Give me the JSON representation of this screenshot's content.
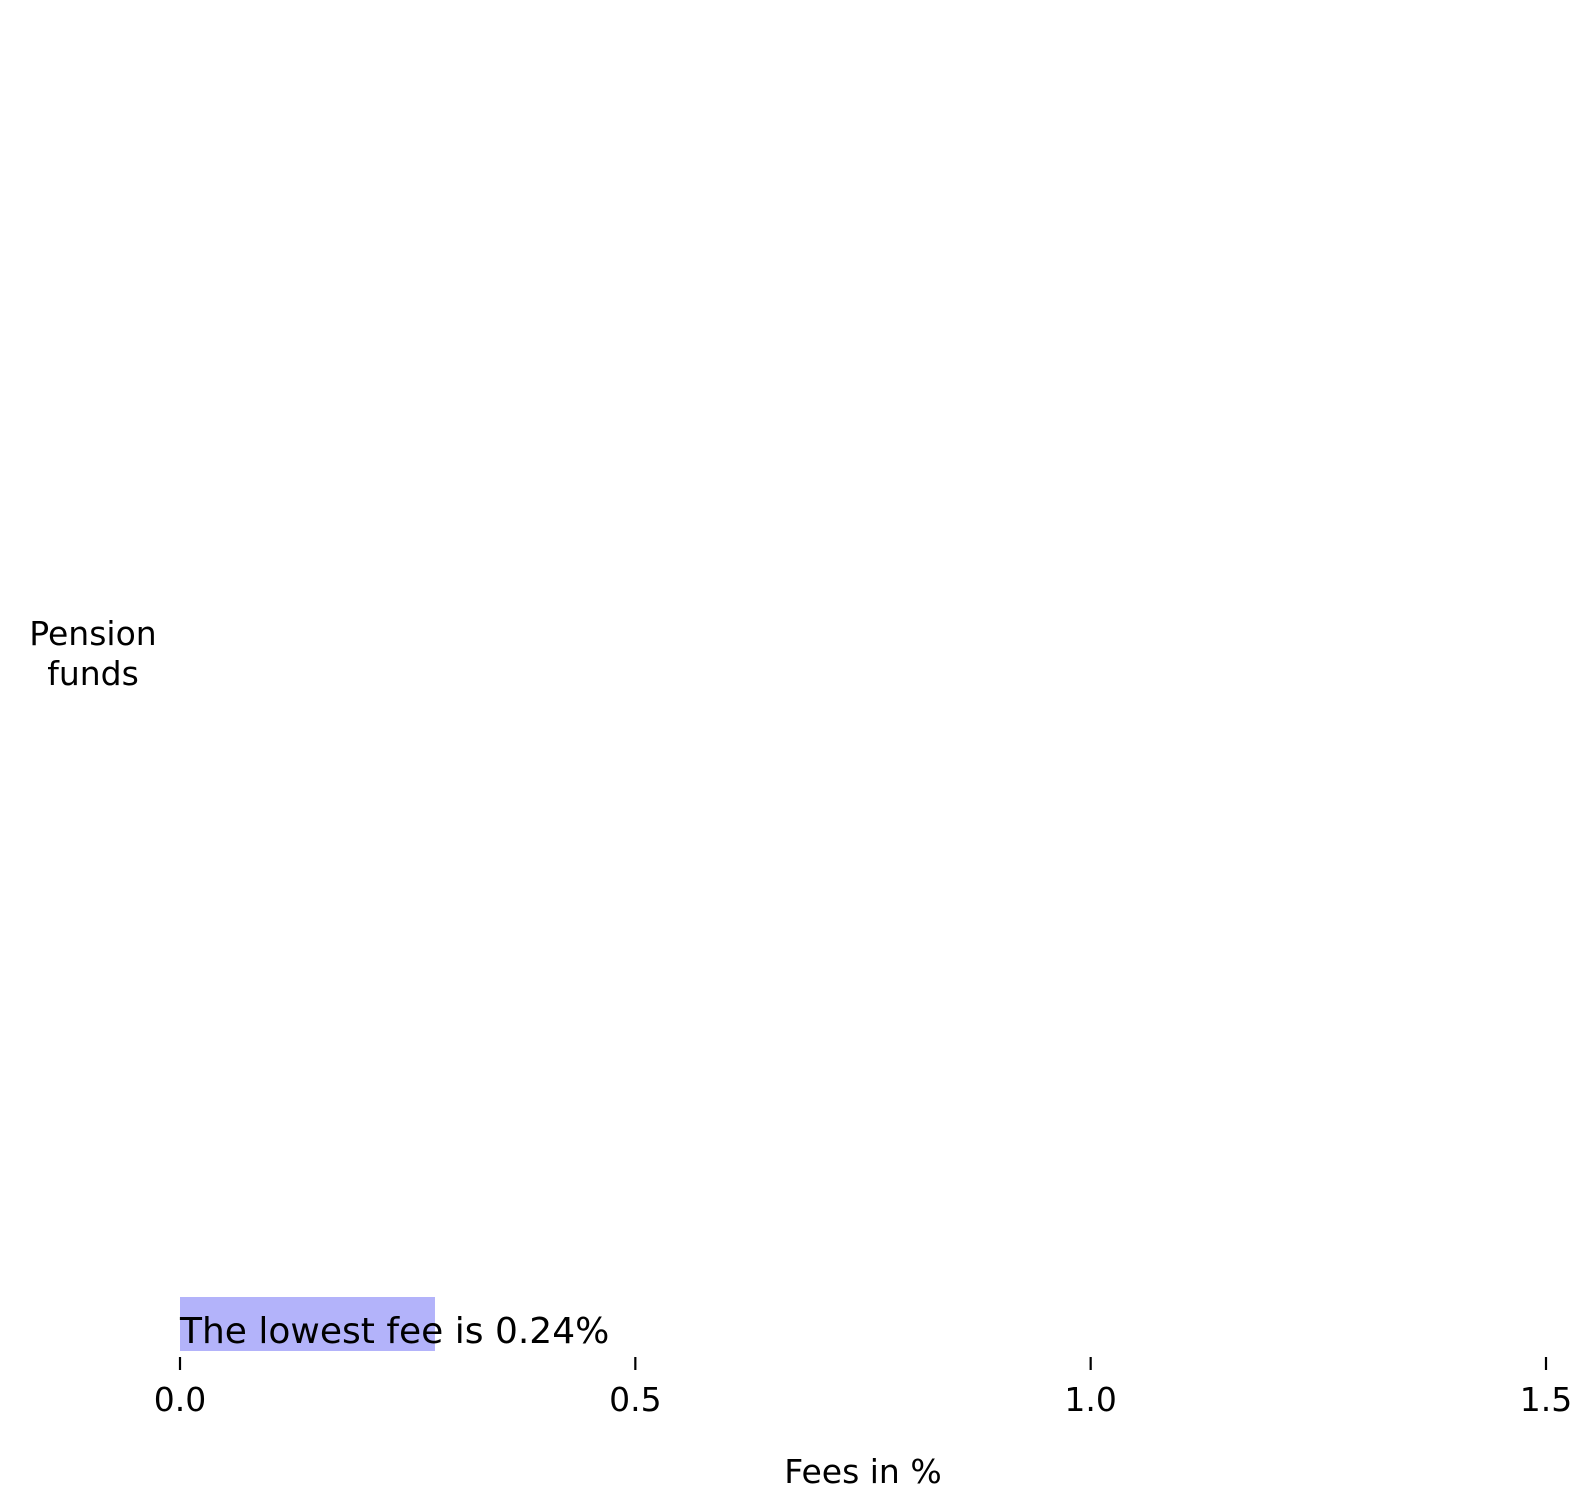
{
  "chart_data": {
    "type": "bar",
    "orientation": "horizontal",
    "categories": [
      "Pension funds"
    ],
    "category_label_lines": [
      "Pension",
      "funds"
    ],
    "values": [
      0.28
    ],
    "annotation": "The lowest fee is 0.24%",
    "xlabel": "Fees in %",
    "ylabel": "",
    "title": "",
    "xlim": [
      0,
      1.5
    ],
    "xticks": [
      0.0,
      0.5,
      1.0,
      1.5
    ],
    "xtick_labels": [
      "0.0",
      "0.5",
      "1.0",
      "1.5"
    ],
    "grid": false,
    "legend": "none",
    "colors": {
      "bar": "#b3b3fa",
      "text": "#000000",
      "axis": "#000000"
    }
  }
}
